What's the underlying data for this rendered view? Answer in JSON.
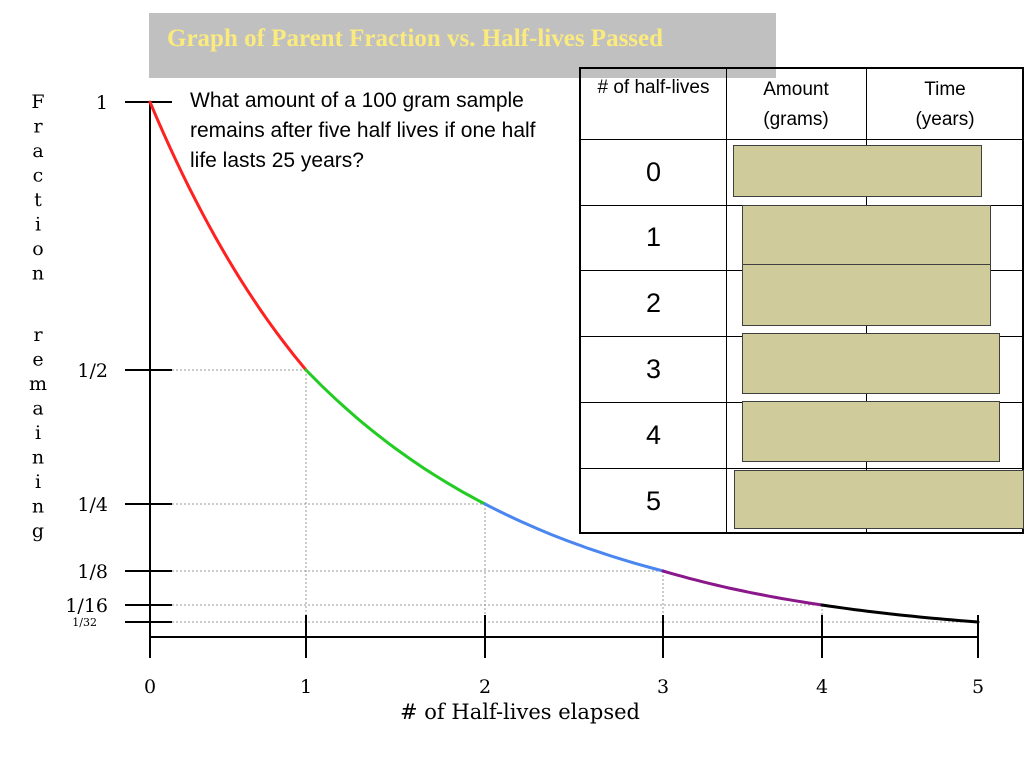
{
  "title": "Graph of Parent Fraction vs. Half-lives Passed",
  "question": "What amount of a 100 gram sample remains after five half lives if one half life lasts 25 years?",
  "table": {
    "headers": [
      "# of half-lives",
      "Amount (grams)",
      "Time (years)"
    ],
    "rows": [
      "0",
      "1",
      "2",
      "3",
      "4",
      "5"
    ]
  },
  "chart_data": {
    "type": "line",
    "xlabel": "# of Half-lives elapsed",
    "ylabel": "Fraction remaining",
    "x_ticks": [
      "0",
      "1",
      "2",
      "3",
      "4",
      "5"
    ],
    "y_ticks": [
      {
        "label": "1",
        "value": 1
      },
      {
        "label": "1/2",
        "value": 0.5
      },
      {
        "label": "1/4",
        "value": 0.25
      },
      {
        "label": "1/8",
        "value": 0.125
      },
      {
        "label": "1/16",
        "value": 0.0625
      },
      {
        "label": "1/32",
        "value": 0.03125
      }
    ],
    "xlim": [
      0,
      5
    ],
    "points": [
      {
        "x": 0,
        "y": 1
      },
      {
        "x": 1,
        "y": 0.5
      },
      {
        "x": 2,
        "y": 0.25
      },
      {
        "x": 3,
        "y": 0.125
      },
      {
        "x": 4,
        "y": 0.0625
      },
      {
        "x": 5,
        "y": 0.03125
      }
    ],
    "segment_colors": [
      "#ff2020",
      "#22cc22",
      "#4a86f0",
      "#8a188a",
      "#000000"
    ]
  }
}
